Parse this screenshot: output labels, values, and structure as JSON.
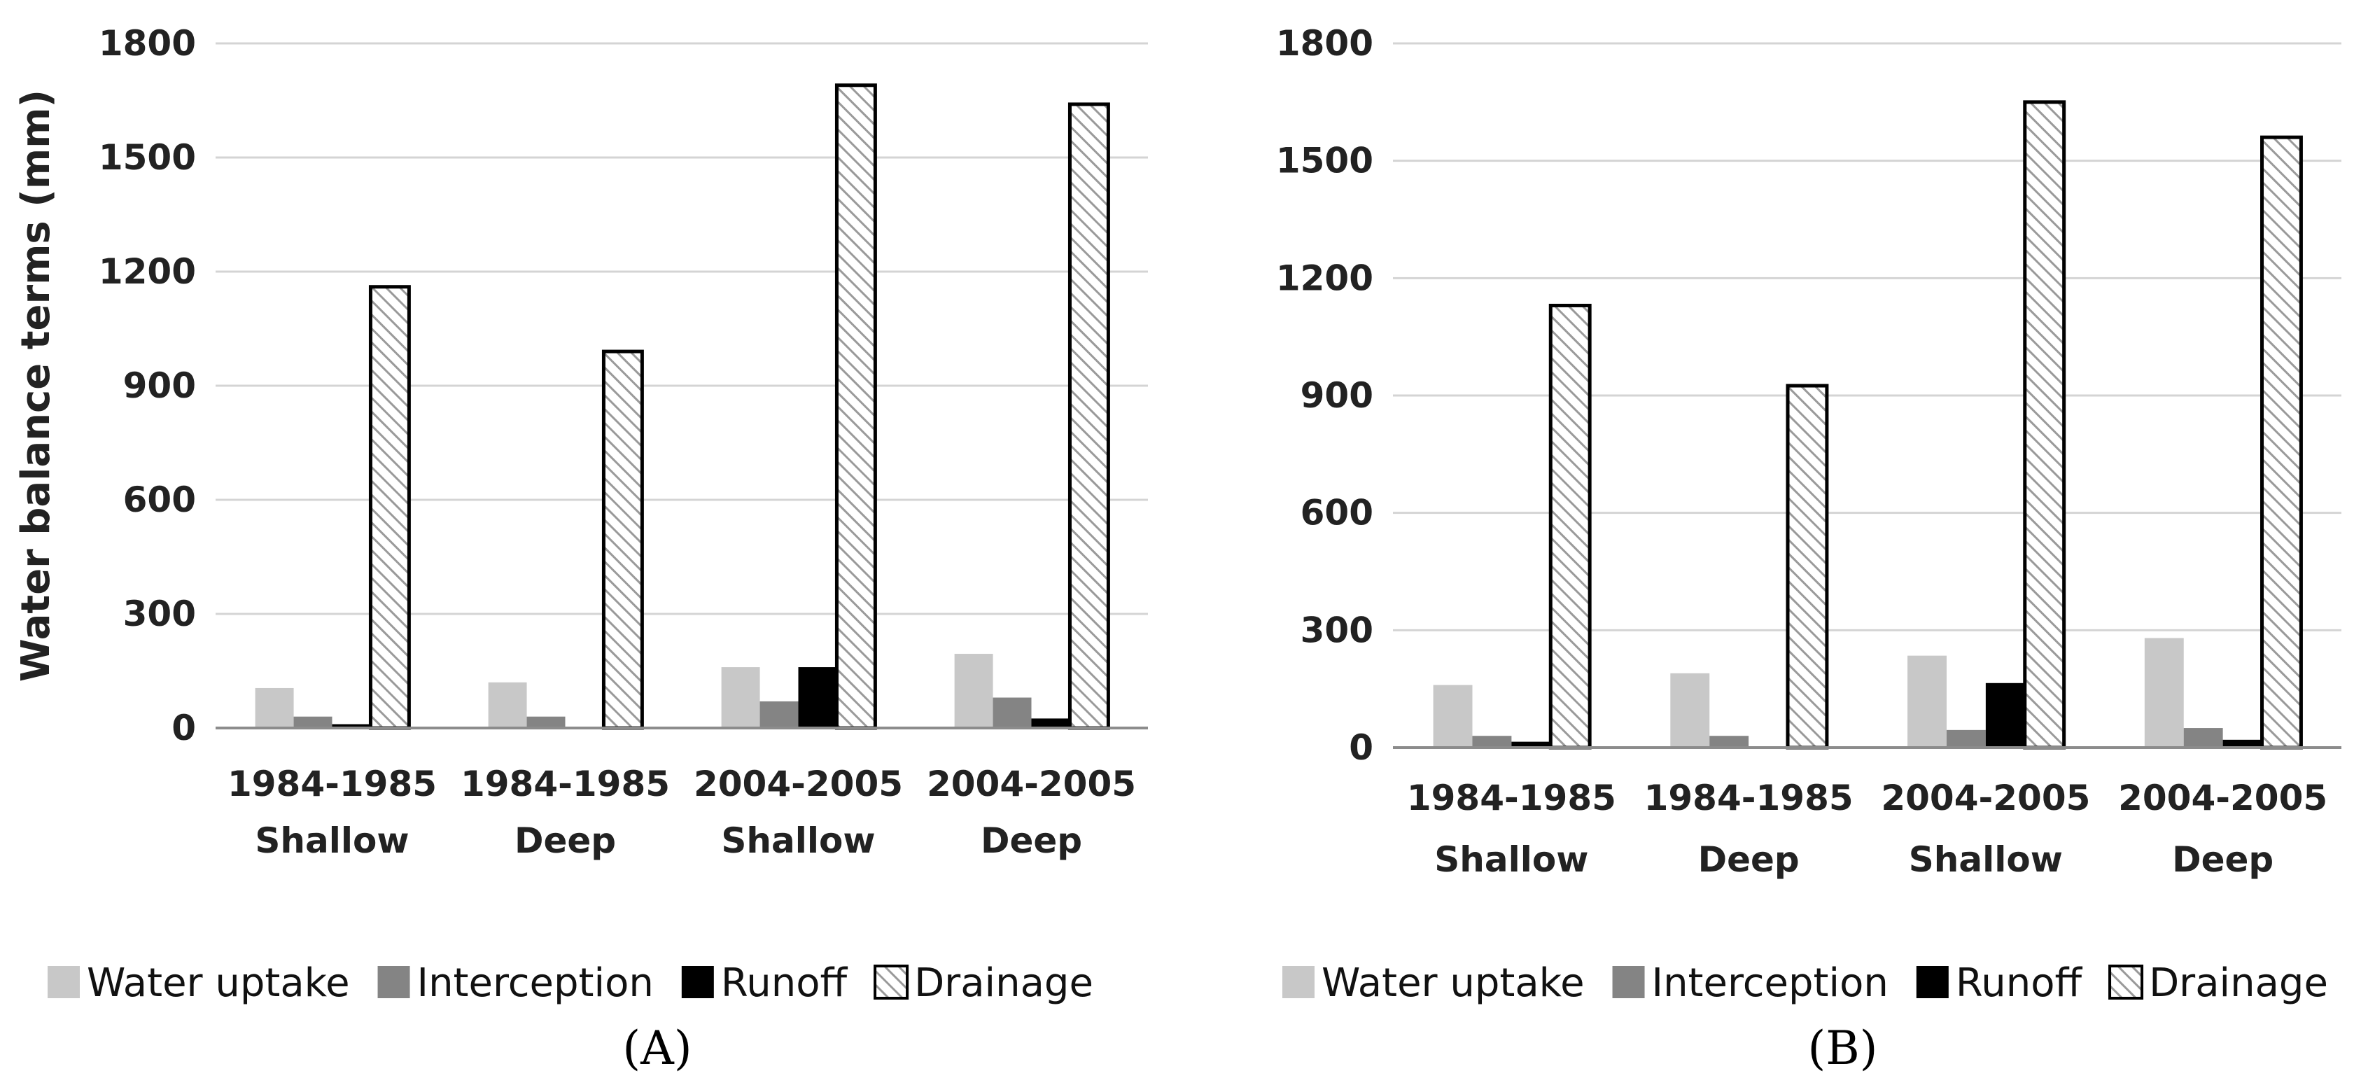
{
  "colors": {
    "water_uptake": "#c8c8c8",
    "interception": "#848484",
    "runoff": "#000000",
    "drainage_hatch": "#9a9a9a",
    "gridline": "#d4d4d4",
    "axis": "#8c8c8c"
  },
  "chart_data": [
    {
      "type": "bar",
      "panel_label": "(A)",
      "panel_letter": "A",
      "ylabel": "Water balance terms (mm)",
      "ylim": [
        0,
        1800
      ],
      "yticks": [
        "0",
        "300",
        "600",
        "900",
        "1200",
        "1500",
        "1800"
      ],
      "categories": [
        {
          "line1": "1984-1985",
          "line2": "Shallow"
        },
        {
          "line1": "1984-1985",
          "line2": "Deep"
        },
        {
          "line1": "2004-2005",
          "line2": "Shallow"
        },
        {
          "line1": "2004-2005",
          "line2": "Deep"
        }
      ],
      "series": [
        {
          "name": "Water uptake",
          "key": "water_uptake",
          "values": [
            105,
            120,
            160,
            195
          ]
        },
        {
          "name": "Interception",
          "key": "interception",
          "values": [
            30,
            30,
            70,
            80
          ]
        },
        {
          "name": "Runoff",
          "key": "runoff",
          "values": [
            10,
            3,
            160,
            25
          ]
        },
        {
          "name": "Drainage",
          "key": "drainage_hatch",
          "values": [
            1160,
            990,
            1690,
            1640
          ]
        }
      ],
      "legend_position": "bottom"
    },
    {
      "type": "bar",
      "panel_label": "(B)",
      "panel_letter": "B",
      "ylabel": "",
      "ylim": [
        0,
        1800
      ],
      "yticks": [
        "0",
        "300",
        "600",
        "900",
        "1200",
        "1500",
        "1800"
      ],
      "categories": [
        {
          "line1": "1984-1985",
          "line2": "Shallow"
        },
        {
          "line1": "1984-1985",
          "line2": "Deep"
        },
        {
          "line1": "2004-2005",
          "line2": "Shallow"
        },
        {
          "line1": "2004-2005",
          "line2": "Deep"
        }
      ],
      "series": [
        {
          "name": "Water uptake",
          "key": "water_uptake",
          "values": [
            160,
            190,
            235,
            280
          ]
        },
        {
          "name": "Interception",
          "key": "interception",
          "values": [
            30,
            30,
            45,
            50
          ]
        },
        {
          "name": "Runoff",
          "key": "runoff",
          "values": [
            15,
            3,
            165,
            20
          ]
        },
        {
          "name": "Drainage",
          "key": "drainage_hatch",
          "values": [
            1130,
            925,
            1650,
            1560
          ]
        }
      ],
      "legend_position": "bottom"
    }
  ]
}
